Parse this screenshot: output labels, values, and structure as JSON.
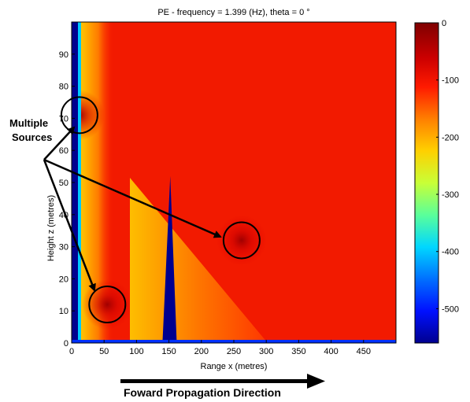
{
  "chart_data": {
    "type": "heatmap",
    "title": "PE - frequency = 1.399 (Hz), theta = 0 °",
    "xlabel": "Range x (metres)",
    "ylabel": "Height z (metres)",
    "xlim": [
      0,
      500
    ],
    "ylim": [
      0,
      100
    ],
    "xticks": [
      0,
      50,
      100,
      150,
      200,
      250,
      300,
      350,
      400,
      450
    ],
    "yticks": [
      0,
      10,
      20,
      30,
      40,
      50,
      60,
      70,
      80,
      90
    ],
    "colorbar": {
      "range": [
        -560,
        0
      ],
      "ticks": [
        0,
        -100,
        -200,
        -300,
        -400,
        -500
      ],
      "colormap": "jet"
    },
    "sources": [
      {
        "x": 12,
        "z": 71
      },
      {
        "x": 55,
        "z": 12
      },
      {
        "x": 262,
        "z": 32
      }
    ],
    "obstacle": {
      "x_left": 140,
      "x_peak": 152,
      "x_right": 162,
      "z_peak": 52
    }
  },
  "annotations": {
    "sources_line1": "Multiple",
    "sources_line2": "Sources",
    "direction": "Foward Propagation Direction"
  }
}
